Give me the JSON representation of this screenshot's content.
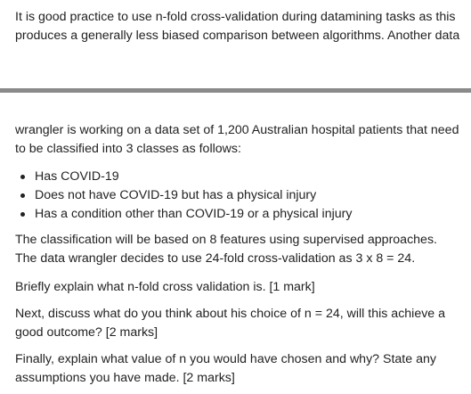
{
  "intro_text": "It is good practice to use n-fold cross-validation during datamining tasks as this produces a generally less biased comparison between algorithms.  Another data",
  "continuation_text": "wrangler is working on a data set of 1,200 Australian hospital patients that need to be classified into 3 classes as follows:",
  "classes": [
    "Has COVID-19",
    "Does not have COVID-19 but has a physical injury",
    "Has a condition other than COVID-19 or a physical injury"
  ],
  "classification_text": "The classification will be based on 8 features using supervised approaches. The data wrangler decides to use 24-fold cross-validation as 3 x 8 = 24.",
  "question_1": "Briefly explain  what n-fold cross validation is. [1 mark]",
  "question_2": "Next, discuss what do you think about his choice of n = 24, will this achieve a good outcome? [2 marks]",
  "question_3": "Finally, explain what value of n you would have chosen and why?  State any assumptions you have made. [2 marks]"
}
